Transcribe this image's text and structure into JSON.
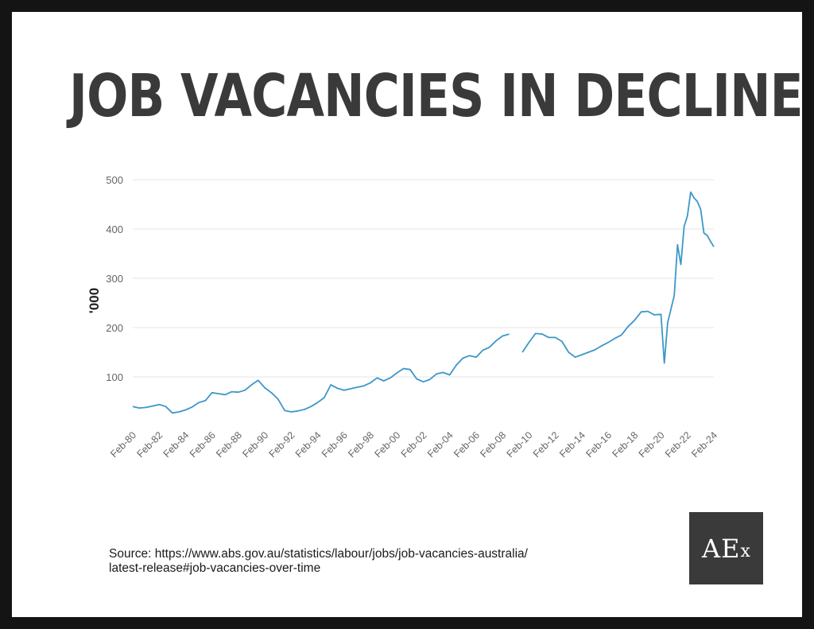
{
  "title": "JOB VACANCIES IN DECLINE",
  "source": {
    "line1": "Source: https://www.abs.gov.au/statistics/labour/jobs/job-vacancies-australia/",
    "line2": "latest-release#job-vacancies-over-time"
  },
  "logo": {
    "main": "AE",
    "suffix": "x"
  },
  "colors": {
    "line": "#3d97c8",
    "grid": "#e6e6e6",
    "tick_text": "#666666",
    "title": "#3a3a3a",
    "logo_bg": "#3a3a3a"
  },
  "chart_data": {
    "type": "line",
    "title": "JOB VACANCIES IN DECLINE",
    "xlabel": "",
    "ylabel": "'000",
    "ylim": [
      0,
      500
    ],
    "yticks": [
      100,
      200,
      300,
      400,
      500
    ],
    "grid": true,
    "x_tick_labels": [
      "Feb-80",
      "Feb-82",
      "Feb-84",
      "Feb-86",
      "Feb-88",
      "Feb-90",
      "Feb-92",
      "Feb-94",
      "Feb-96",
      "Feb-98",
      "Feb-00",
      "Feb-02",
      "Feb-04",
      "Feb-06",
      "Feb-08",
      "Feb-10",
      "Feb-12",
      "Feb-14",
      "Feb-16",
      "Feb-18",
      "Feb-20",
      "Feb-22",
      "Feb-24"
    ],
    "x_start": "Feb-80",
    "x_end": "Feb-24",
    "segments": [
      {
        "x": [
          "Feb-80",
          "Aug-80",
          "Feb-81",
          "Aug-81",
          "Feb-82",
          "Aug-82",
          "Feb-83",
          "Aug-83",
          "Feb-84",
          "Aug-84",
          "Feb-85",
          "Aug-85",
          "Feb-86",
          "Aug-86",
          "Feb-87",
          "Aug-87",
          "Feb-88",
          "Aug-88",
          "Feb-89",
          "Aug-89",
          "Feb-90",
          "Aug-90",
          "Feb-91",
          "Aug-91",
          "Feb-92",
          "Aug-92",
          "Feb-93",
          "Aug-93",
          "Feb-94",
          "Aug-94",
          "Feb-95",
          "Aug-95",
          "Feb-96",
          "Aug-96",
          "Feb-97",
          "Aug-97",
          "Feb-98",
          "Aug-98",
          "Feb-99",
          "Aug-99",
          "Feb-00",
          "Aug-00",
          "Feb-01",
          "Aug-01",
          "Feb-02",
          "Aug-02",
          "Feb-03",
          "Aug-03",
          "Feb-04",
          "Aug-04",
          "Feb-05",
          "Aug-05",
          "Feb-06",
          "Aug-06",
          "Feb-07",
          "Aug-07",
          "Feb-08",
          "Aug-08"
        ],
        "values": [
          40,
          37,
          38,
          41,
          44,
          40,
          27,
          29,
          33,
          39,
          48,
          52,
          68,
          66,
          64,
          70,
          69,
          73,
          84,
          93,
          78,
          68,
          55,
          32,
          29,
          31,
          34,
          40,
          48,
          58,
          84,
          77,
          73,
          76,
          79,
          82,
          88,
          98,
          92,
          98,
          108,
          117,
          115,
          96,
          90,
          95,
          106,
          109,
          104,
          124,
          138,
          143,
          140,
          154,
          160,
          173,
          183,
          187
        ]
      },
      {
        "x": [
          "Aug-09",
          "Feb-10",
          "Aug-10",
          "Feb-11",
          "Aug-11",
          "Feb-12",
          "Aug-12",
          "Feb-13",
          "Aug-13",
          "Feb-14",
          "Aug-14",
          "Feb-15",
          "Aug-15",
          "Feb-16",
          "Aug-16",
          "Feb-17",
          "Aug-17",
          "Feb-18",
          "Aug-18",
          "Feb-19",
          "Aug-19",
          "Feb-20",
          "May-20",
          "Aug-20",
          "Feb-21",
          "May-21",
          "Aug-21",
          "Nov-21",
          "Feb-22",
          "May-22",
          "Aug-22",
          "Nov-22",
          "Feb-23",
          "May-23",
          "Aug-23",
          "Nov-23",
          "Feb-24"
        ],
        "values": [
          150,
          170,
          188,
          187,
          180,
          180,
          172,
          150,
          140,
          145,
          150,
          155,
          163,
          170,
          178,
          185,
          202,
          215,
          232,
          233,
          226,
          227,
          128,
          210,
          265,
          368,
          328,
          405,
          427,
          475,
          463,
          456,
          440,
          392,
          387,
          375,
          364
        ]
      }
    ]
  }
}
